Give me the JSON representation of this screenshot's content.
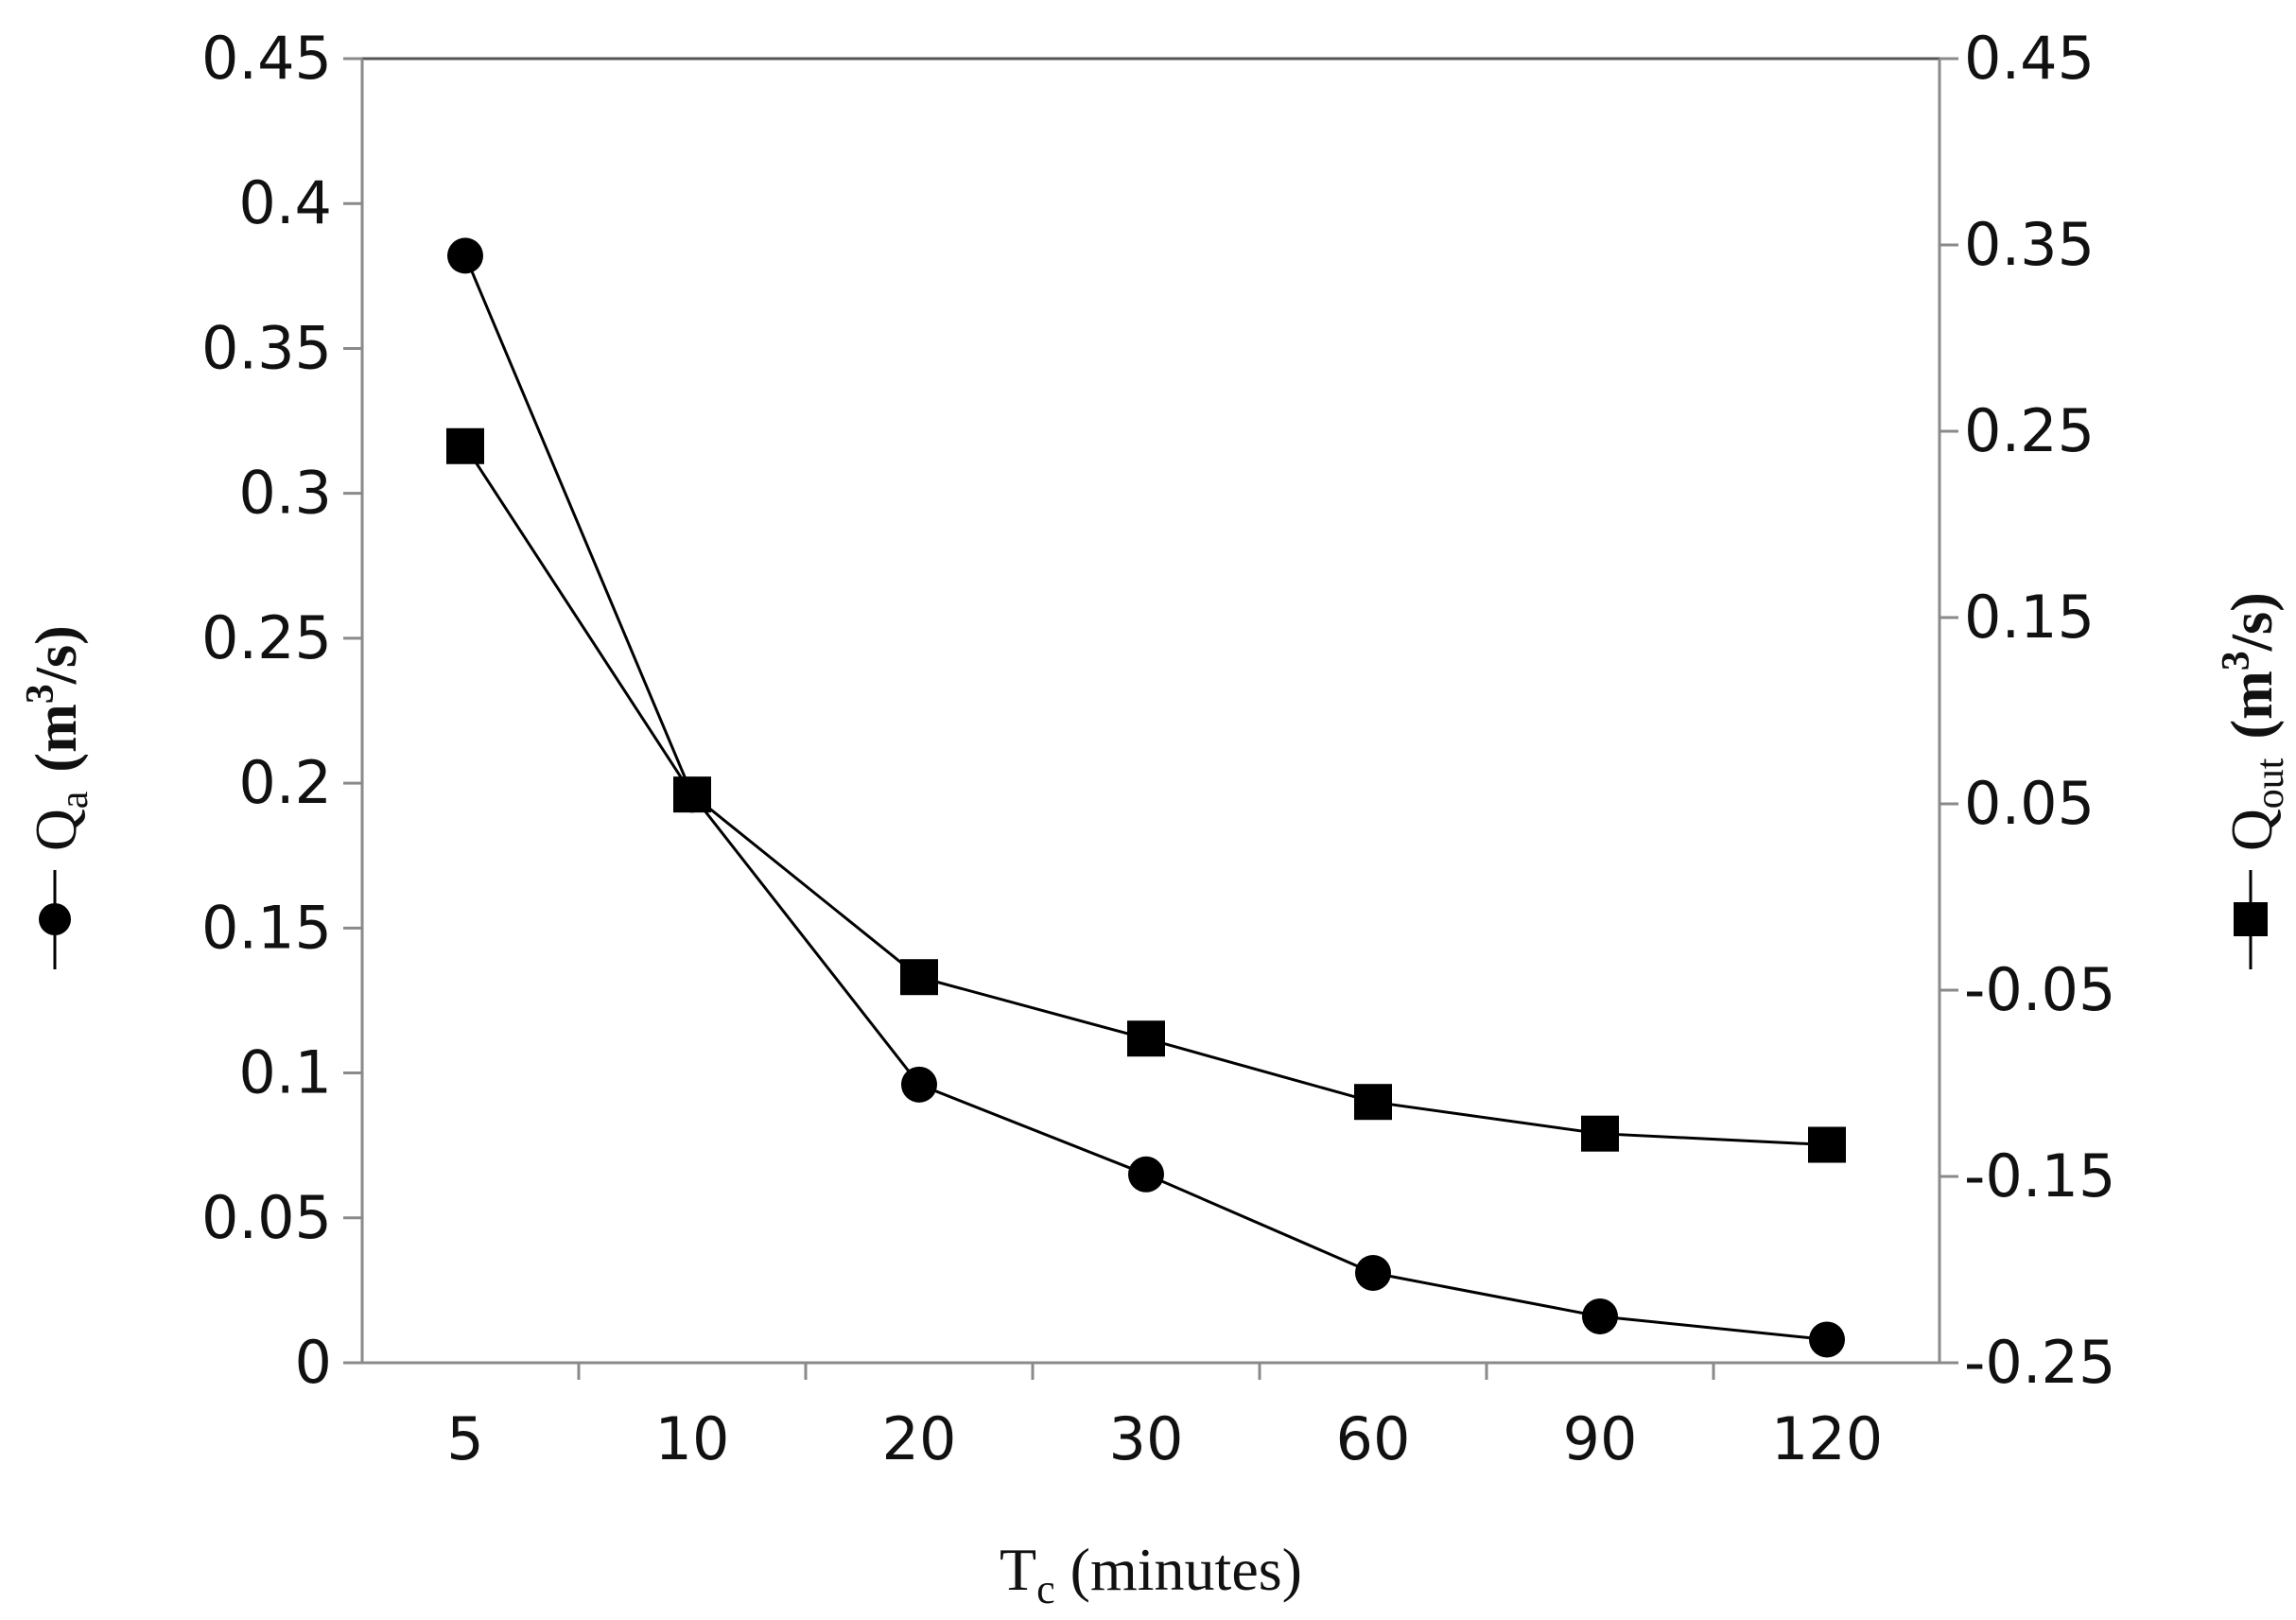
{
  "chart_data": {
    "type": "line",
    "categories": [
      "5",
      "10",
      "20",
      "30",
      "60",
      "90",
      "120"
    ],
    "xlabel": {
      "symbol": "T",
      "sub": "c",
      "rest": " (minutes)"
    },
    "y_left": {
      "ylim": [
        0,
        0.45
      ],
      "ticks": [
        "0",
        "0.05",
        "0.1",
        "0.15",
        "0.2",
        "0.25",
        "0.3",
        "0.35",
        "0.4",
        "0.45"
      ],
      "label": {
        "symbol": "Q",
        "sub": "a",
        "unit_open": "(m",
        "unit_sup": "3",
        "unit_close": "/s)"
      }
    },
    "y_right": {
      "ylim": [
        -0.25,
        0.45
      ],
      "ticks": [
        "-0.25",
        "-0.15",
        "-0.05",
        "0.05",
        "0.15",
        "0.25",
        "0.35",
        "0.45"
      ],
      "label": {
        "symbol": "Q",
        "sub": "out",
        "unit_open": "(m",
        "unit_sup": "3",
        "unit_close": "/s)"
      }
    },
    "series": [
      {
        "key": "qa",
        "axis": "left",
        "marker": "circle",
        "values": [
          0.382,
          0.196,
          0.096,
          0.065,
          0.031,
          0.016,
          0.008
        ]
      },
      {
        "key": "qout",
        "axis": "right",
        "marker": "square",
        "values": [
          0.242,
          0.055,
          -0.043,
          -0.076,
          -0.11,
          -0.127,
          -0.133
        ]
      }
    ],
    "grid": false,
    "colors": {
      "line": "#000000",
      "axis": "#8a8a8a",
      "frame": "#555555",
      "text": "#111111"
    }
  }
}
